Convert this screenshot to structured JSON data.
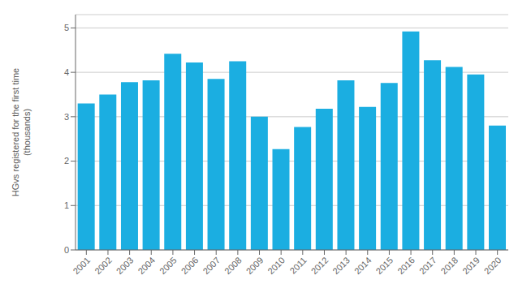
{
  "chart_data": {
    "type": "bar",
    "categories": [
      "2001",
      "2002",
      "2003",
      "2004",
      "2005",
      "2006",
      "2007",
      "2008",
      "2009",
      "2010",
      "2011",
      "2012",
      "2013",
      "2014",
      "2015",
      "2016",
      "2017",
      "2018",
      "2019",
      "2020"
    ],
    "values": [
      3.3,
      3.5,
      3.78,
      3.82,
      4.42,
      4.22,
      3.85,
      4.25,
      3.0,
      2.27,
      2.77,
      3.18,
      3.82,
      3.22,
      3.76,
      4.92,
      4.27,
      4.12,
      3.95,
      2.8
    ],
    "color": "#1baee1",
    "ylabel": "HGvs registered for the first time\n(thousands)",
    "ylim": [
      0,
      5.3
    ],
    "yticks": [
      0,
      1,
      2,
      3,
      4,
      5
    ],
    "grid": true
  }
}
